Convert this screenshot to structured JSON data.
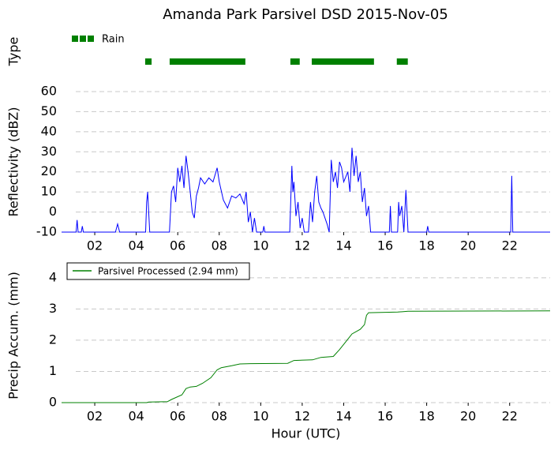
{
  "chart_data": [
    {
      "type": "timeline",
      "title": "Amanda Park Parsivel DSD 2015-Nov-05",
      "ylabel": "Type",
      "xlim": [
        0.4,
        23.95
      ],
      "series": [
        {
          "name": "Rain",
          "color": "#008000",
          "segments": [
            [
              4.43,
              4.74
            ],
            [
              5.61,
              9.26
            ],
            [
              11.43,
              11.88
            ],
            [
              12.46,
              15.46
            ],
            [
              16.56,
              17.09
            ]
          ]
        }
      ]
    },
    {
      "type": "line",
      "ylabel": "Reflectivity (dBZ)",
      "xlim": [
        0.4,
        23.95
      ],
      "ylim": [
        -10,
        60
      ],
      "yticks": [
        -10,
        0,
        10,
        20,
        30,
        40,
        50,
        60
      ],
      "grid": true,
      "xticks": [
        {
          "value": 2,
          "label": "02"
        },
        {
          "value": 4,
          "label": "04"
        },
        {
          "value": 6,
          "label": "06"
        },
        {
          "value": 8,
          "label": "08"
        },
        10,
        12,
        14,
        16,
        18,
        20,
        22
      ],
      "x": [
        0.4,
        1.1,
        1.15,
        1.2,
        1.35,
        1.4,
        1.45,
        3.0,
        3.1,
        3.2,
        4.45,
        4.5,
        4.55,
        4.65,
        5.6,
        5.7,
        5.8,
        5.9,
        6.0,
        6.1,
        6.2,
        6.3,
        6.4,
        6.5,
        6.6,
        6.7,
        6.8,
        6.9,
        7.0,
        7.1,
        7.3,
        7.5,
        7.7,
        7.9,
        8.0,
        8.2,
        8.4,
        8.6,
        8.8,
        9.0,
        9.2,
        9.3,
        9.4,
        9.5,
        9.6,
        9.7,
        9.8,
        10.1,
        10.15,
        10.2,
        11.4,
        11.5,
        11.55,
        11.6,
        11.7,
        11.8,
        11.9,
        12.0,
        12.1,
        12.3,
        12.4,
        12.5,
        12.6,
        12.7,
        12.8,
        12.9,
        13.0,
        13.2,
        13.3,
        13.4,
        13.5,
        13.6,
        13.7,
        13.8,
        13.9,
        14.0,
        14.2,
        14.3,
        14.4,
        14.5,
        14.6,
        14.7,
        14.8,
        14.9,
        15.0,
        15.1,
        15.2,
        15.3,
        15.4,
        16.2,
        16.25,
        16.3,
        16.6,
        16.65,
        16.7,
        16.8,
        16.9,
        17.0,
        17.1,
        18.0,
        18.05,
        18.1,
        22.05,
        22.1,
        22.15,
        23.95
      ],
      "series": [
        {
          "color": "#0000ff",
          "values": [
            -10,
            -10,
            -4,
            -10,
            -10,
            -7,
            -10,
            -10,
            -6,
            -10,
            -10,
            5,
            10,
            -10,
            -10,
            10,
            13,
            5,
            22,
            15,
            23,
            12,
            28,
            20,
            10,
            0,
            -3,
            8,
            12,
            17,
            14,
            17,
            15,
            22,
            15,
            6,
            2,
            8,
            7,
            9,
            4,
            10,
            -5,
            0,
            -10,
            -3,
            -10,
            -10,
            -7,
            -10,
            -10,
            23,
            10,
            15,
            -2,
            5,
            -8,
            -3,
            -10,
            -10,
            5,
            -5,
            10,
            18,
            5,
            2,
            0,
            -6,
            -10,
            26,
            15,
            20,
            12,
            25,
            22,
            15,
            20,
            10,
            32,
            18,
            28,
            15,
            20,
            5,
            12,
            -2,
            3,
            -10,
            -10,
            -10,
            3,
            -10,
            -10,
            5,
            -2,
            3,
            -10,
            11,
            -10,
            -10,
            -7,
            -10,
            -10,
            18,
            -10,
            -10
          ]
        }
      ]
    },
    {
      "type": "line",
      "ylabel": "Precip Accum. (mm)",
      "xlabel": "Hour (UTC)",
      "xlim": [
        0.4,
        23.95
      ],
      "ylim": [
        0,
        4.3
      ],
      "yticks": [
        0,
        1,
        2,
        3,
        4
      ],
      "grid": true,
      "legend": "upper left",
      "xticks": [
        {
          "value": 2,
          "label": "02"
        },
        {
          "value": 4,
          "label": "04"
        },
        {
          "value": 6,
          "label": "06"
        },
        {
          "value": 8,
          "label": "08"
        },
        10,
        12,
        14,
        16,
        18,
        20,
        22
      ],
      "x": [
        0.4,
        4.5,
        4.6,
        5.5,
        5.7,
        6.2,
        6.4,
        6.6,
        6.9,
        7.2,
        7.6,
        7.9,
        8.1,
        8.6,
        9.0,
        9.5,
        11.3,
        11.6,
        12.5,
        12.9,
        13.5,
        13.8,
        14.1,
        14.4,
        14.8,
        15.0,
        15.1,
        15.2,
        16.6,
        17.1,
        23.95
      ],
      "series": [
        {
          "name": "Parsivel Processed (2.94 mm)",
          "color": "#008000",
          "values": [
            0,
            0,
            0.02,
            0.03,
            0.1,
            0.25,
            0.45,
            0.5,
            0.52,
            0.62,
            0.8,
            1.05,
            1.12,
            1.18,
            1.24,
            1.25,
            1.26,
            1.35,
            1.37,
            1.45,
            1.48,
            1.7,
            1.95,
            2.2,
            2.35,
            2.5,
            2.8,
            2.88,
            2.9,
            2.93,
            2.94
          ]
        }
      ]
    }
  ]
}
